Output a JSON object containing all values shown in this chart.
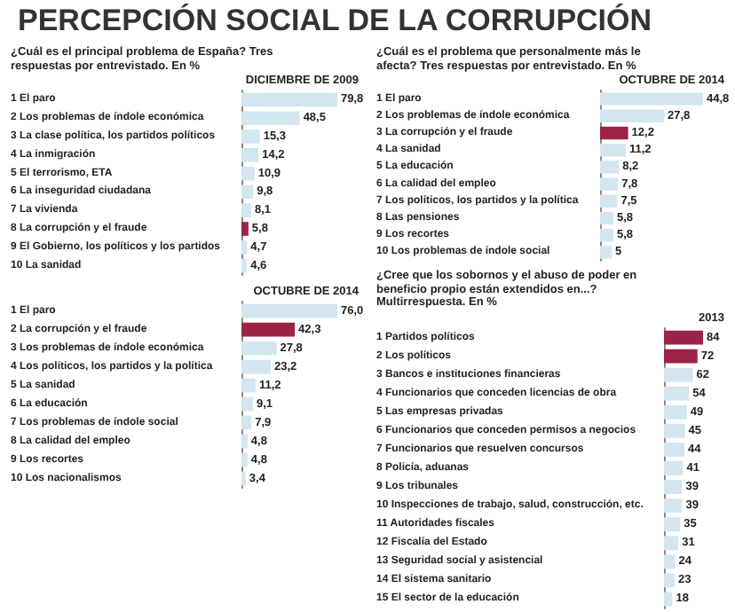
{
  "chart_data": [
    {
      "type": "bar",
      "orientation": "horizontal",
      "title": "PERCEPCIÓN SOCIAL DE LA CORRUPCIÓN",
      "subtitle": "¿Cuál es el principal problema de España? Tres respuestas por entrevistado. En %",
      "annotations": [
        "DICIEMBRE DE 2009"
      ],
      "categories": [
        "1 El paro",
        "2 Los problemas de índole económica",
        "3 La clase política, los partidos políticos",
        "4 La inmigración",
        "5 El terrorismo, ETA",
        "6 La inseguridad ciudadana",
        "7 La vivienda",
        "8 La corrupción y el fraude",
        "9 El Gobierno, los políticos y los partidos",
        "10 La sanidad"
      ],
      "values": [
        79.8,
        48.5,
        15.3,
        14.2,
        10.9,
        9.8,
        8.1,
        5.8,
        4.7,
        4.6
      ],
      "value_labels": [
        "79,8",
        "48,5",
        "15,3",
        "14,2",
        "10,9",
        "9,8",
        "8,1",
        "5,8",
        "4,7",
        "4,6"
      ],
      "colors": [
        "#d3e6f0",
        "#d3e6f0",
        "#d3e6f0",
        "#d3e6f0",
        "#d3e6f0",
        "#d3e6f0",
        "#d3e6f0",
        "#9b2346",
        "#d3e6f0",
        "#d3e6f0"
      ]
    },
    {
      "type": "bar",
      "orientation": "horizontal",
      "subtitle": "¿Cuál es el problema que personalmente más le afecta? Tres respuestas por entrevistado. En %",
      "annotations": [
        "OCTUBRE DE 2014"
      ],
      "categories": [
        "1 El paro",
        "2 Los problemas de índole económica",
        "3 La corrupción y el fraude",
        "4 La sanidad",
        "5 La educación",
        "6 La calidad del empleo",
        "7 Los políticos, los partidos y la política",
        "8 Las pensiones",
        "9 Los recortes",
        "10 Los problemas de índole social"
      ],
      "values": [
        44.8,
        27.8,
        12.2,
        11.2,
        8.2,
        7.8,
        7.5,
        5.8,
        5.8,
        5
      ],
      "value_labels": [
        "44,8",
        "27,8",
        "12,2",
        "11,2",
        "8,2",
        "7,8",
        "7,5",
        "5,8",
        "5,8",
        "5"
      ],
      "colors": [
        "#d3e6f0",
        "#d3e6f0",
        "#9b2346",
        "#d3e6f0",
        "#d3e6f0",
        "#d3e6f0",
        "#d3e6f0",
        "#d3e6f0",
        "#d3e6f0",
        "#d3e6f0"
      ]
    },
    {
      "type": "bar",
      "orientation": "horizontal",
      "annotations": [
        "OCTUBRE DE 2014"
      ],
      "categories": [
        "1 El paro",
        "2 La corrupción y el fraude",
        "3 Los problemas de índole económica",
        "4 Los políticos, los partidos y la política",
        "5 La sanidad",
        "6 La educación",
        "7 Los problemas de índole social",
        "8 La calidad del empleo",
        "9 Los recortes",
        "10 Los nacionalismos"
      ],
      "values": [
        76.0,
        42.3,
        27.8,
        23.2,
        11.2,
        9.1,
        7.9,
        4.8,
        4.8,
        3.4
      ],
      "value_labels": [
        "76,0",
        "42,3",
        "27,8",
        "23,2",
        "11,2",
        "9,1",
        "7,9",
        "4,8",
        "4,8",
        "3,4"
      ],
      "colors": [
        "#d3e6f0",
        "#9b2346",
        "#d3e6f0",
        "#d3e6f0",
        "#d3e6f0",
        "#d3e6f0",
        "#d3e6f0",
        "#d3e6f0",
        "#d3e6f0",
        "#d3e6f0"
      ]
    },
    {
      "type": "bar",
      "orientation": "horizontal",
      "subtitle": "¿Cree que los sobornos y el abuso de poder en beneficio propio están extendidos en...? Multirrespuesta. En %",
      "annotations": [
        "2013"
      ],
      "categories": [
        "1 Partidos políticos",
        "2 Los políticos",
        "3 Bancos e instituciones financieras",
        "4 Funcionarios que conceden licencias de obra",
        "5 Las empresas privadas",
        "6 Funcionarios que conceden permisos a negocios",
        "7 Funcionarios que resuelven concursos",
        "8 Policía, aduanas",
        "9 Los tribunales",
        "10 Inspecciones de trabajo, salud, construcción, etc.",
        "11 Autoridades fiscales",
        "12 Fiscalía del Estado",
        "13 Seguridad social y asistencial",
        "14 El sistema sanitario",
        "15 El sector de la educación"
      ],
      "values": [
        84,
        72,
        62,
        54,
        49,
        45,
        44,
        41,
        39,
        39,
        35,
        31,
        24,
        23,
        18
      ],
      "value_labels": [
        "84",
        "72",
        "62",
        "54",
        "49",
        "45",
        "44",
        "41",
        "39",
        "39",
        "35",
        "31",
        "24",
        "23",
        "18"
      ],
      "colors": [
        "#9b2346",
        "#9b2346",
        "#d3e6f0",
        "#d3e6f0",
        "#d3e6f0",
        "#d3e6f0",
        "#d3e6f0",
        "#d3e6f0",
        "#d3e6f0",
        "#d3e6f0",
        "#d3e6f0",
        "#d3e6f0",
        "#d3e6f0",
        "#d3e6f0",
        "#d3e6f0"
      ]
    }
  ]
}
